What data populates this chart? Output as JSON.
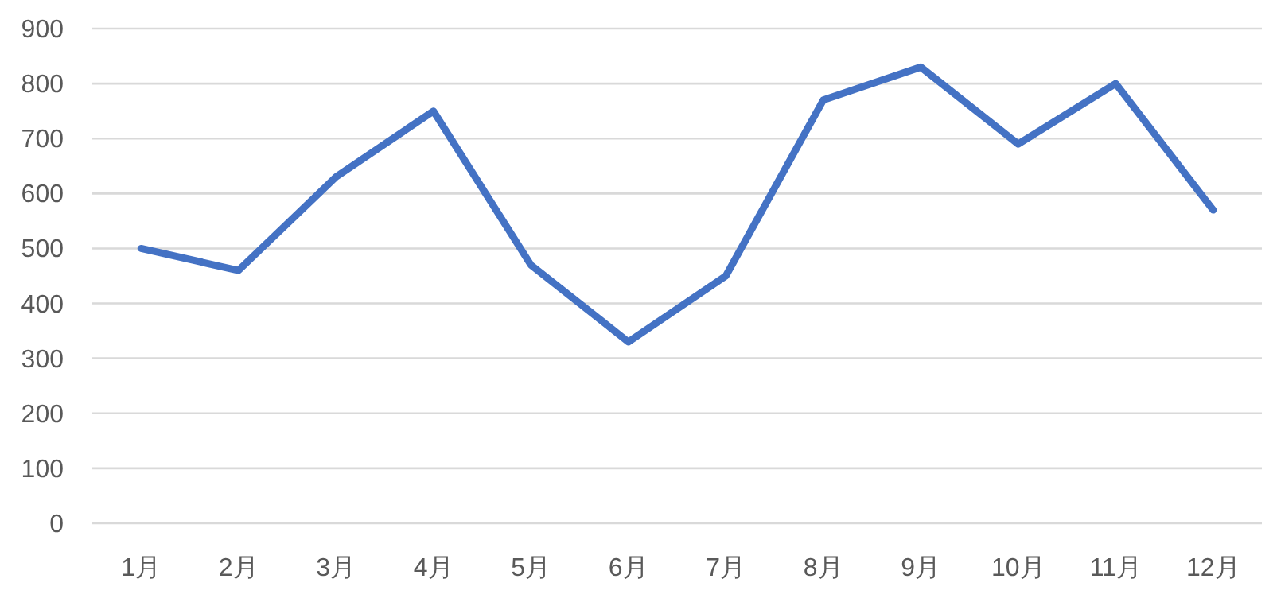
{
  "chart_data": {
    "type": "line",
    "categories": [
      "1月",
      "2月",
      "3月",
      "4月",
      "5月",
      "6月",
      "7月",
      "8月",
      "9月",
      "10月",
      "11月",
      "12月"
    ],
    "series": [
      {
        "color": "#4472c4",
        "values": [
          500,
          460,
          630,
          750,
          470,
          330,
          450,
          770,
          830,
          690,
          800,
          570
        ]
      }
    ],
    "ylim": [
      0,
      900
    ],
    "yticks": [
      0,
      100,
      200,
      300,
      400,
      500,
      600,
      700,
      800,
      900
    ],
    "grid": "y",
    "marker": "none",
    "line_style": "solid"
  }
}
